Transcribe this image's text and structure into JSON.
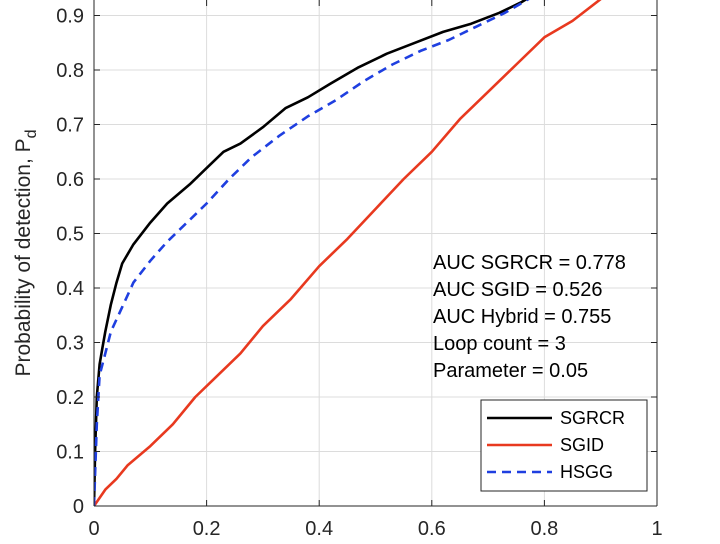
{
  "chart_data": {
    "type": "line",
    "title": "",
    "xlabel": "",
    "ylabel": "Probability of detection, P",
    "ylabel_subscript": "d",
    "xlim": [
      0,
      1
    ],
    "ylim": [
      0,
      0.95
    ],
    "grid": true,
    "xticks": [
      "0",
      "0.2",
      "0.4",
      "0.6",
      "0.8",
      "1"
    ],
    "yticks": [
      "0",
      "0.1",
      "0.2",
      "0.3",
      "0.4",
      "0.5",
      "0.6",
      "0.7",
      "0.8",
      "0.9"
    ],
    "legend_position": "bottom-right",
    "annotations": [
      "AUC SGRCR = 0.778",
      "AUC SGID = 0.526",
      "AUC Hybrid = 0.755",
      "Loop count = 3",
      "Parameter = 0.05"
    ],
    "series": [
      {
        "name": "SGRCR",
        "color": "#000000",
        "style": "solid",
        "x": [
          0,
          0.002,
          0.005,
          0.01,
          0.015,
          0.02,
          0.03,
          0.04,
          0.05,
          0.07,
          0.1,
          0.13,
          0.17,
          0.2,
          0.23,
          0.26,
          0.3,
          0.34,
          0.38,
          0.42,
          0.47,
          0.52,
          0.57,
          0.62,
          0.67,
          0.72,
          0.76,
          0.8
        ],
        "y": [
          0,
          0.1,
          0.2,
          0.26,
          0.29,
          0.32,
          0.37,
          0.41,
          0.445,
          0.48,
          0.52,
          0.555,
          0.59,
          0.62,
          0.65,
          0.665,
          0.695,
          0.73,
          0.75,
          0.775,
          0.805,
          0.83,
          0.85,
          0.87,
          0.885,
          0.905,
          0.925,
          0.95
        ]
      },
      {
        "name": "SGID",
        "color": "#e8391f",
        "style": "solid",
        "x": [
          0,
          0.02,
          0.04,
          0.06,
          0.1,
          0.14,
          0.18,
          0.22,
          0.26,
          0.3,
          0.35,
          0.4,
          0.45,
          0.5,
          0.55,
          0.6,
          0.65,
          0.7,
          0.75,
          0.8,
          0.85,
          0.9,
          0.92
        ],
        "y": [
          0,
          0.03,
          0.05,
          0.075,
          0.11,
          0.15,
          0.2,
          0.24,
          0.28,
          0.33,
          0.38,
          0.44,
          0.49,
          0.545,
          0.6,
          0.65,
          0.71,
          0.76,
          0.81,
          0.86,
          0.89,
          0.93,
          0.95
        ]
      },
      {
        "name": "HSGG",
        "color": "#1f3fe0",
        "style": "dashed",
        "x": [
          0,
          0.005,
          0.01,
          0.02,
          0.03,
          0.05,
          0.07,
          0.1,
          0.13,
          0.17,
          0.2,
          0.24,
          0.28,
          0.33,
          0.38,
          0.43,
          0.48,
          0.53,
          0.58,
          0.63,
          0.68,
          0.73,
          0.78
        ],
        "y": [
          0,
          0.15,
          0.24,
          0.28,
          0.32,
          0.365,
          0.41,
          0.45,
          0.485,
          0.525,
          0.555,
          0.6,
          0.64,
          0.68,
          0.715,
          0.745,
          0.78,
          0.81,
          0.835,
          0.855,
          0.88,
          0.905,
          0.935
        ]
      }
    ]
  }
}
